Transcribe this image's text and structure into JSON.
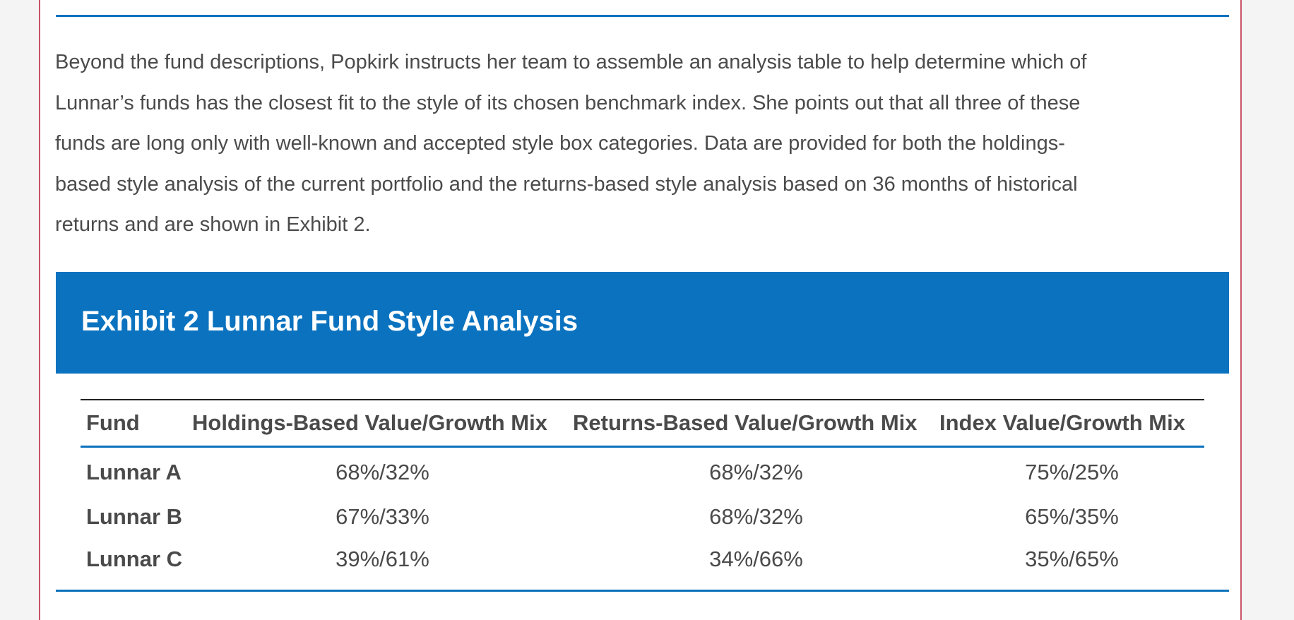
{
  "intro_lines": [
    "Beyond the fund descriptions, Popkirk instructs her team to assemble an analysis table to help determine which of",
    "Lunnar’s funds has the closest fit to the style of its chosen benchmark index. She points out that all three of these",
    "funds are long only with well-known and accepted style box categories. Data are provided for both the holdings-",
    "based style analysis of the current portfolio and the returns-based style analysis based on 36 months of historical",
    "returns and are shown in Exhibit 2."
  ],
  "exhibit": {
    "title": "Exhibit 2 Lunnar Fund Style Analysis",
    "columns": [
      "Fund",
      "Holdings-Based Value/Growth Mix",
      "Returns-Based Value/Growth Mix",
      "Index Value/Growth Mix"
    ],
    "rows": [
      [
        "Lunnar A",
        "68%/32%",
        "68%/32%",
        "75%/25%"
      ],
      [
        "Lunnar B",
        "67%/33%",
        "68%/32%",
        "65%/35%"
      ],
      [
        "Lunnar C",
        "39%/61%",
        "34%/66%",
        "35%/65%"
      ]
    ]
  },
  "colors": {
    "accent_blue": "#0a72bf",
    "page_border": "#c85468",
    "body_text": "#4b4b4b"
  }
}
